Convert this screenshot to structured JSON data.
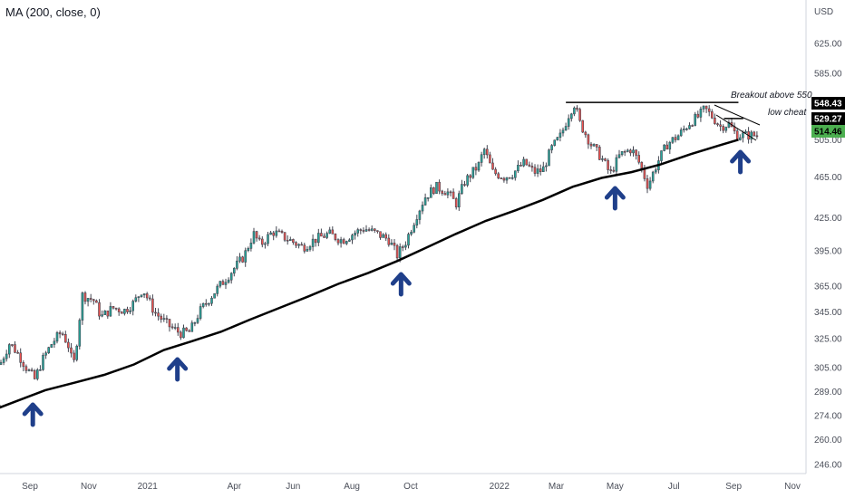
{
  "indicator": {
    "label": "MA (200, close, 0)"
  },
  "chart_data": {
    "type": "candlestick",
    "y_axis": {
      "currency": "USD",
      "scale": "log",
      "ylim": [
        236,
        700
      ],
      "ticks": [
        "625.00",
        "585.00",
        "548.43",
        "529.27",
        "514.46",
        "505.00",
        "465.00",
        "425.00",
        "395.00",
        "365.00",
        "345.00",
        "325.00",
        "305.00",
        "289.00",
        "274.00",
        "260.00",
        "246.00"
      ]
    },
    "x_axis": {
      "ticks": [
        "Sep",
        "Nov",
        "2021",
        "Apr",
        "Jun",
        "Aug",
        "Oct",
        "2022",
        "Mar",
        "May",
        "Jul",
        "Sep",
        "Nov"
      ]
    },
    "price_path": [
      {
        "x": "2020-08-15",
        "y": 307
      },
      {
        "x": "2020-08-25",
        "y": 322
      },
      {
        "x": "2020-09-03",
        "y": 314
      },
      {
        "x": "2020-09-12",
        "y": 304
      },
      {
        "x": "2020-09-20",
        "y": 297
      },
      {
        "x": "2020-09-28",
        "y": 310
      },
      {
        "x": "2020-10-08",
        "y": 322
      },
      {
        "x": "2020-10-18",
        "y": 330
      },
      {
        "x": "2020-10-25",
        "y": 320
      },
      {
        "x": "2020-10-30",
        "y": 305
      },
      {
        "x": "2020-11-04",
        "y": 330
      },
      {
        "x": "2020-11-08",
        "y": 358
      },
      {
        "x": "2020-11-20",
        "y": 354
      },
      {
        "x": "2020-11-28",
        "y": 341
      },
      {
        "x": "2020-12-10",
        "y": 348
      },
      {
        "x": "2020-12-22",
        "y": 346
      },
      {
        "x": "2021-01-01",
        "y": 352
      },
      {
        "x": "2021-01-10",
        "y": 363
      },
      {
        "x": "2021-01-22",
        "y": 345
      },
      {
        "x": "2021-02-05",
        "y": 335
      },
      {
        "x": "2021-02-18",
        "y": 329
      },
      {
        "x": "2021-02-28",
        "y": 330
      },
      {
        "x": "2021-03-10",
        "y": 345
      },
      {
        "x": "2021-03-25",
        "y": 360
      },
      {
        "x": "2021-04-08",
        "y": 373
      },
      {
        "x": "2021-04-25",
        "y": 390
      },
      {
        "x": "2021-05-05",
        "y": 410
      },
      {
        "x": "2021-05-12",
        "y": 400
      },
      {
        "x": "2021-05-25",
        "y": 412
      },
      {
        "x": "2021-06-10",
        "y": 405
      },
      {
        "x": "2021-06-25",
        "y": 398
      },
      {
        "x": "2021-07-08",
        "y": 405
      },
      {
        "x": "2021-07-22",
        "y": 410
      },
      {
        "x": "2021-08-05",
        "y": 404
      },
      {
        "x": "2021-08-18",
        "y": 411
      },
      {
        "x": "2021-08-28",
        "y": 415
      },
      {
        "x": "2021-09-10",
        "y": 410
      },
      {
        "x": "2021-09-22",
        "y": 405
      },
      {
        "x": "2021-10-01",
        "y": 391
      },
      {
        "x": "2021-10-10",
        "y": 403
      },
      {
        "x": "2021-10-20",
        "y": 425
      },
      {
        "x": "2021-10-30",
        "y": 445
      },
      {
        "x": "2021-11-10",
        "y": 455
      },
      {
        "x": "2021-11-22",
        "y": 450
      },
      {
        "x": "2021-12-01",
        "y": 438
      },
      {
        "x": "2021-12-10",
        "y": 460
      },
      {
        "x": "2021-12-25",
        "y": 478
      },
      {
        "x": "2021-12-30",
        "y": 495
      },
      {
        "x": "2022-01-08",
        "y": 470
      },
      {
        "x": "2022-01-20",
        "y": 465
      },
      {
        "x": "2022-01-28",
        "y": 468
      },
      {
        "x": "2022-02-10",
        "y": 480
      },
      {
        "x": "2022-02-20",
        "y": 470
      },
      {
        "x": "2022-03-01",
        "y": 472
      },
      {
        "x": "2022-03-10",
        "y": 495
      },
      {
        "x": "2022-03-20",
        "y": 510
      },
      {
        "x": "2022-03-29",
        "y": 537
      },
      {
        "x": "2022-04-03",
        "y": 547
      },
      {
        "x": "2022-04-08",
        "y": 525
      },
      {
        "x": "2022-04-20",
        "y": 500
      },
      {
        "x": "2022-05-01",
        "y": 485
      },
      {
        "x": "2022-05-10",
        "y": 468
      },
      {
        "x": "2022-05-20",
        "y": 488
      },
      {
        "x": "2022-06-01",
        "y": 495
      },
      {
        "x": "2022-06-10",
        "y": 478
      },
      {
        "x": "2022-06-18",
        "y": 456
      },
      {
        "x": "2022-06-28",
        "y": 480
      },
      {
        "x": "2022-07-08",
        "y": 500
      },
      {
        "x": "2022-07-20",
        "y": 510
      },
      {
        "x": "2022-08-01",
        "y": 525
      },
      {
        "x": "2022-08-10",
        "y": 532
      },
      {
        "x": "2022-08-16",
        "y": 541
      },
      {
        "x": "2022-08-25",
        "y": 530
      },
      {
        "x": "2022-09-01",
        "y": 520
      },
      {
        "x": "2022-09-10",
        "y": 523
      },
      {
        "x": "2022-09-18",
        "y": 510
      }
    ],
    "ma_200": [
      {
        "x": "2020-08-01",
        "y": 276
      },
      {
        "x": "2020-09-01",
        "y": 283
      },
      {
        "x": "2020-10-01",
        "y": 290
      },
      {
        "x": "2020-11-01",
        "y": 295
      },
      {
        "x": "2020-12-01",
        "y": 300
      },
      {
        "x": "2021-01-01",
        "y": 307
      },
      {
        "x": "2021-02-01",
        "y": 317
      },
      {
        "x": "2021-03-01",
        "y": 323
      },
      {
        "x": "2021-04-01",
        "y": 330
      },
      {
        "x": "2021-05-01",
        "y": 339
      },
      {
        "x": "2021-06-01",
        "y": 348
      },
      {
        "x": "2021-07-01",
        "y": 357
      },
      {
        "x": "2021-08-01",
        "y": 367
      },
      {
        "x": "2021-09-01",
        "y": 376
      },
      {
        "x": "2021-10-01",
        "y": 386
      },
      {
        "x": "2021-11-01",
        "y": 398
      },
      {
        "x": "2021-12-01",
        "y": 410
      },
      {
        "x": "2022-01-01",
        "y": 422
      },
      {
        "x": "2022-02-01",
        "y": 432
      },
      {
        "x": "2022-03-01",
        "y": 442
      },
      {
        "x": "2022-04-01",
        "y": 455
      },
      {
        "x": "2022-05-01",
        "y": 464
      },
      {
        "x": "2022-06-01",
        "y": 470
      },
      {
        "x": "2022-07-01",
        "y": 478
      },
      {
        "x": "2022-08-01",
        "y": 489
      },
      {
        "x": "2022-09-01",
        "y": 499
      },
      {
        "x": "2022-09-20",
        "y": 505
      }
    ],
    "price_badges": [
      {
        "value": "548.43",
        "bg": "#000000",
        "fg": "#ffffff"
      },
      {
        "value": "529.27",
        "bg": "#000000",
        "fg": "#ffffff"
      },
      {
        "value": "514.46",
        "bg": "#4caf50",
        "fg": "#000000"
      }
    ],
    "annotations": [
      {
        "text": "Breakout above 550",
        "y": 548.43
      },
      {
        "text": "low cheat",
        "y": 529.27
      }
    ],
    "support_arrows_dates": [
      "2020-09-18",
      "2021-02-15",
      "2021-10-05",
      "2022-05-15",
      "2022-09-22"
    ],
    "horizontal_lines": [
      {
        "y": 548.43,
        "x_start": "2022-03-25",
        "x_end": "2022-09-20"
      },
      {
        "y": 529.27,
        "x_start": "2022-09-05",
        "x_end": "2022-09-25"
      }
    ],
    "colors": {
      "up": "#26a69a",
      "down": "#ef5350",
      "candle": "#434651",
      "ma": "#000000",
      "arrow": "#1f3f8a"
    }
  }
}
